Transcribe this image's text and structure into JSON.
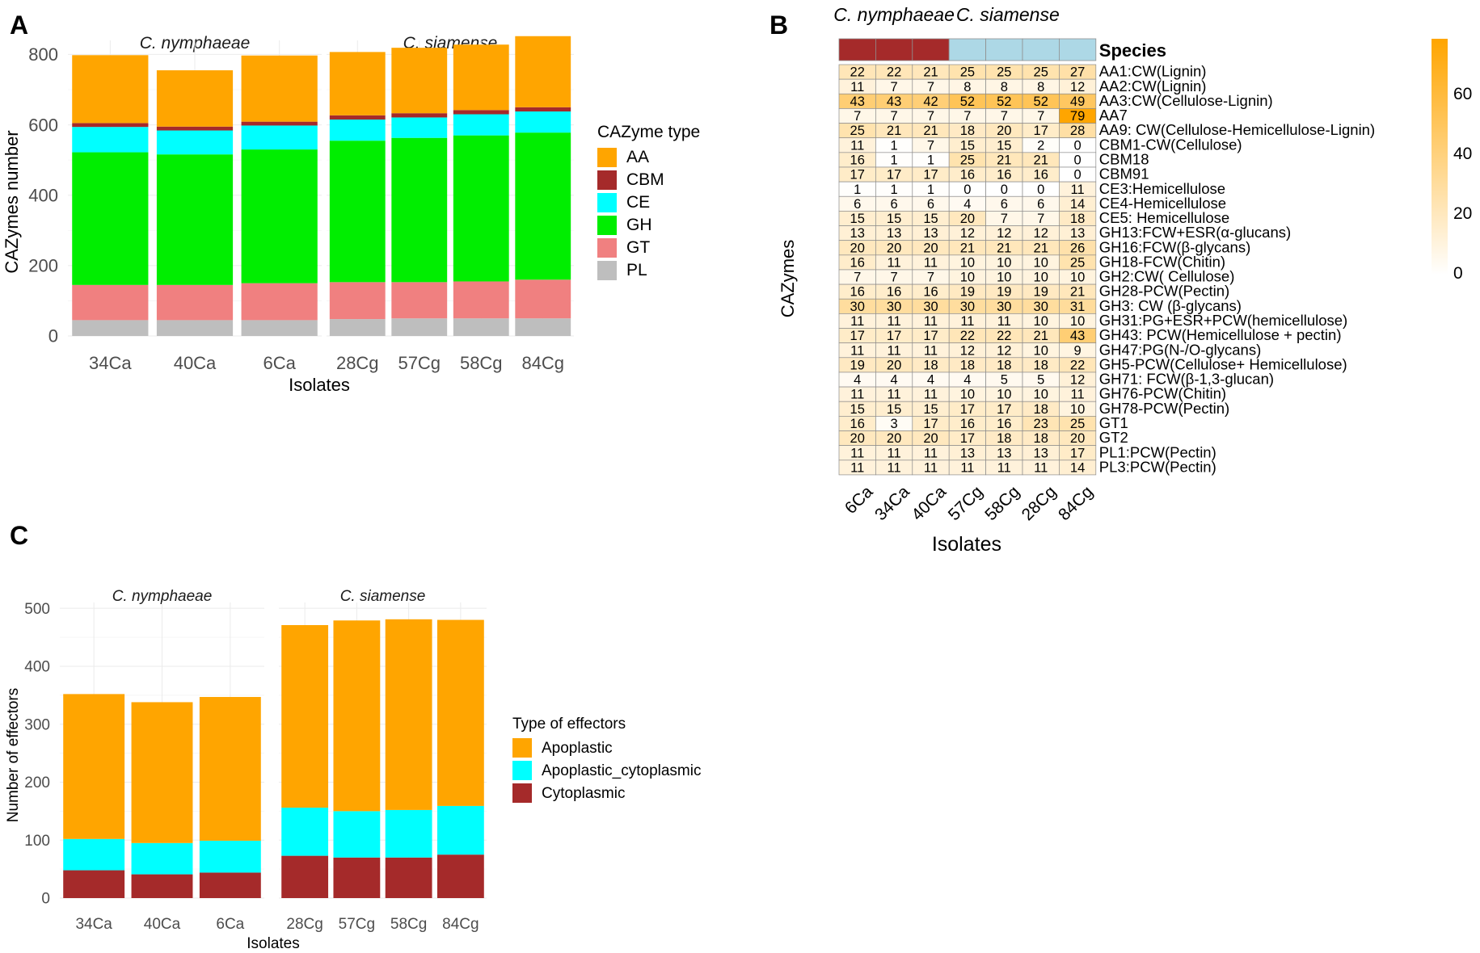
{
  "panel_labels": {
    "a": "A",
    "b": "B",
    "c": "C"
  },
  "colors": {
    "AA": "#FFA500",
    "CBM": "#A52A2A",
    "CE": "#00FFFF",
    "GH": "#00EE00",
    "GT": "#F08080",
    "PL": "#BEBEBE",
    "nymphaeae_strip": "#A52A2A",
    "siamense_strip": "#ADD8E6",
    "heat_max": "#FFA500",
    "heat_min": "#FFFFFF"
  },
  "chart_data": [
    {
      "panel": "A",
      "type": "bar",
      "stacked": true,
      "facets": [
        "C. nymphaeae",
        "C. siamense"
      ],
      "facet_categories": [
        [
          "34Ca",
          "40Ca",
          "6Ca"
        ],
        [
          "28Cg",
          "57Cg",
          "58Cg",
          "84Cg"
        ]
      ],
      "series": [
        {
          "name": "PL",
          "values": [
            45,
            45,
            45,
            48,
            50,
            50,
            50
          ]
        },
        {
          "name": "GT",
          "values": [
            100,
            100,
            105,
            105,
            103,
            105,
            110
          ]
        },
        {
          "name": "GH",
          "values": [
            377,
            371,
            380,
            402,
            410,
            415,
            418
          ]
        },
        {
          "name": "CE",
          "values": [
            72,
            68,
            68,
            60,
            58,
            60,
            60
          ]
        },
        {
          "name": "CBM",
          "values": [
            11,
            11,
            11,
            12,
            12,
            12,
            12
          ]
        },
        {
          "name": "AA",
          "values": [
            193,
            160,
            188,
            180,
            186,
            186,
            202
          ]
        }
      ],
      "xlabel": "Isolates",
      "ylabel": "CAZymes number",
      "ylim": [
        0,
        840
      ],
      "yticks": [
        0,
        200,
        400,
        600,
        800
      ],
      "legend_title": "CAZyme type",
      "legend": [
        "AA",
        "CBM",
        "CE",
        "GH",
        "GT",
        "PL"
      ]
    },
    {
      "panel": "B",
      "type": "heatmap",
      "columns": [
        "6Ca",
        "34Ca",
        "40Ca",
        "57Cg",
        "58Cg",
        "28Cg",
        "84Cg"
      ],
      "column_species": [
        "C. nymphaeae",
        "C. nymphaeae",
        "C. nymphaeae",
        "C. siamense",
        "C. siamense",
        "C. siamense",
        "C. siamense"
      ],
      "species_header": [
        "C. nymphaeae",
        "C. siamense"
      ],
      "annotation_label": "Species",
      "rows": [
        "AA1:CW(Lignin)",
        "AA2:CW(Lignin)",
        "AA3:CW(Cellulose-Lignin)",
        "AA7",
        "AA9: CW(Cellulose-Hemicellulose-Lignin)",
        "CBM1-CW(Cellulose)",
        "CBM18",
        "CBM91",
        "CE3:Hemicellulose",
        "CE4-Hemicellulose",
        "CE5: Hemicellulose",
        "GH13:FCW+ESR(α-glucans)",
        "GH16:FCW(β-glycans)",
        "GH18-FCW(Chitin)",
        "GH2:CW( Cellulose)",
        "GH28-PCW(Pectin)",
        "GH3: CW (β-glycans)",
        "GH31:PG+ESR+PCW(hemicellulose)",
        "GH43: PCW(Hemicellulose + pectin)",
        "GH47:PG(N-/O-glycans)",
        "GH5-PCW(Cellulose+ Hemicellulose)",
        "GH71: FCW(β-1,3-glucan)",
        "GH76-PCW(Chitin)",
        "GH78-PCW(Pectin)",
        "GT1",
        "GT2",
        "PL1:PCW(Pectin)",
        "PL3:PCW(Pectin)"
      ],
      "values": [
        [
          22,
          22,
          21,
          25,
          25,
          25,
          27
        ],
        [
          11,
          7,
          7,
          8,
          8,
          8,
          12
        ],
        [
          43,
          43,
          42,
          52,
          52,
          52,
          49
        ],
        [
          7,
          7,
          7,
          7,
          7,
          7,
          79
        ],
        [
          25,
          21,
          21,
          18,
          20,
          17,
          28
        ],
        [
          11,
          1,
          7,
          15,
          15,
          2,
          0
        ],
        [
          16,
          1,
          1,
          25,
          21,
          21,
          0
        ],
        [
          17,
          17,
          17,
          16,
          16,
          16,
          0
        ],
        [
          1,
          1,
          1,
          0,
          0,
          0,
          11
        ],
        [
          6,
          6,
          6,
          4,
          6,
          6,
          14
        ],
        [
          15,
          15,
          15,
          20,
          7,
          7,
          18
        ],
        [
          13,
          13,
          13,
          12,
          12,
          12,
          13
        ],
        [
          20,
          20,
          20,
          21,
          21,
          21,
          26
        ],
        [
          16,
          11,
          11,
          10,
          10,
          10,
          25
        ],
        [
          7,
          7,
          7,
          10,
          10,
          10,
          10
        ],
        [
          16,
          16,
          16,
          19,
          19,
          19,
          21
        ],
        [
          30,
          30,
          30,
          30,
          30,
          30,
          31
        ],
        [
          11,
          11,
          11,
          11,
          11,
          10,
          10
        ],
        [
          17,
          17,
          17,
          22,
          22,
          21,
          43
        ],
        [
          11,
          11,
          11,
          12,
          12,
          10,
          9
        ],
        [
          19,
          20,
          18,
          18,
          18,
          18,
          22
        ],
        [
          4,
          4,
          4,
          4,
          5,
          5,
          12
        ],
        [
          11,
          11,
          11,
          10,
          10,
          10,
          11
        ],
        [
          15,
          15,
          15,
          17,
          17,
          18,
          10
        ],
        [
          16,
          3,
          17,
          16,
          16,
          23,
          25
        ],
        [
          20,
          20,
          20,
          17,
          18,
          18,
          20
        ],
        [
          11,
          11,
          11,
          13,
          13,
          13,
          17
        ],
        [
          11,
          11,
          11,
          11,
          11,
          11,
          14
        ]
      ],
      "xlabel": "Isolates",
      "ylabel": "CAZymes",
      "color_range": [
        0,
        79
      ],
      "colorbar_ticks": [
        0,
        20,
        40,
        60
      ]
    },
    {
      "panel": "C",
      "type": "bar",
      "stacked": true,
      "facets": [
        "C. nymphaeae",
        "C. siamense"
      ],
      "facet_categories": [
        [
          "34Ca",
          "40Ca",
          "6Ca"
        ],
        [
          "28Cg",
          "57Cg",
          "58Cg",
          "84Cg"
        ]
      ],
      "series": [
        {
          "name": "Cytoplasmic",
          "values": [
            48,
            41,
            44,
            73,
            70,
            70,
            75
          ]
        },
        {
          "name": "Apoplastic_cytoplasmic",
          "values": [
            54,
            54,
            55,
            83,
            80,
            82,
            84
          ]
        },
        {
          "name": "Apoplastic",
          "values": [
            250,
            243,
            248,
            315,
            329,
            329,
            321
          ]
        }
      ],
      "xlabel": "Isolates",
      "ylabel": "Number of effectors",
      "ylim": [
        0,
        510
      ],
      "yticks": [
        0,
        100,
        200,
        300,
        400,
        500
      ],
      "legend_title": "Type of effectors",
      "legend": [
        "Apoplastic",
        "Apoplastic_cytoplasmic",
        "Cytoplasmic"
      ]
    }
  ]
}
